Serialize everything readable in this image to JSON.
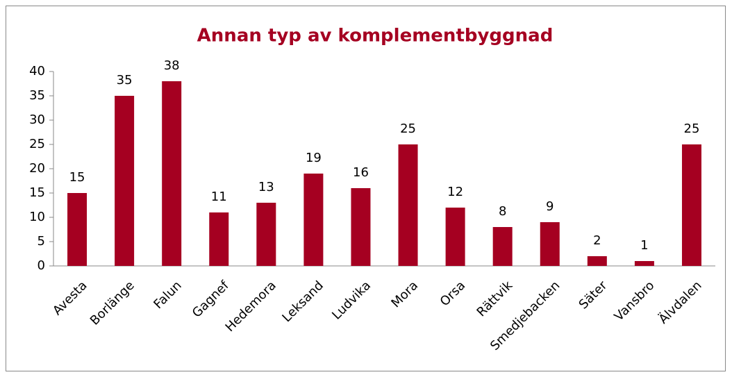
{
  "chart_data": {
    "type": "bar",
    "title": "Annan typ av komplementbyggnad",
    "categories": [
      "Avesta",
      "Borlänge",
      "Falun",
      "Gagnef",
      "Hedemora",
      "Leksand",
      "Ludvika",
      "Mora",
      "Orsa",
      "Rättvik",
      "Smedjebacken",
      "Säter",
      "Vansbro",
      "Älvdalen"
    ],
    "values": [
      15,
      35,
      38,
      11,
      13,
      19,
      16,
      25,
      12,
      8,
      9,
      2,
      1,
      25
    ],
    "color": "#a50021",
    "ylim": [
      0,
      40
    ],
    "yticks": [
      0,
      5,
      10,
      15,
      20,
      25,
      30,
      35,
      40
    ],
    "grid": false
  }
}
